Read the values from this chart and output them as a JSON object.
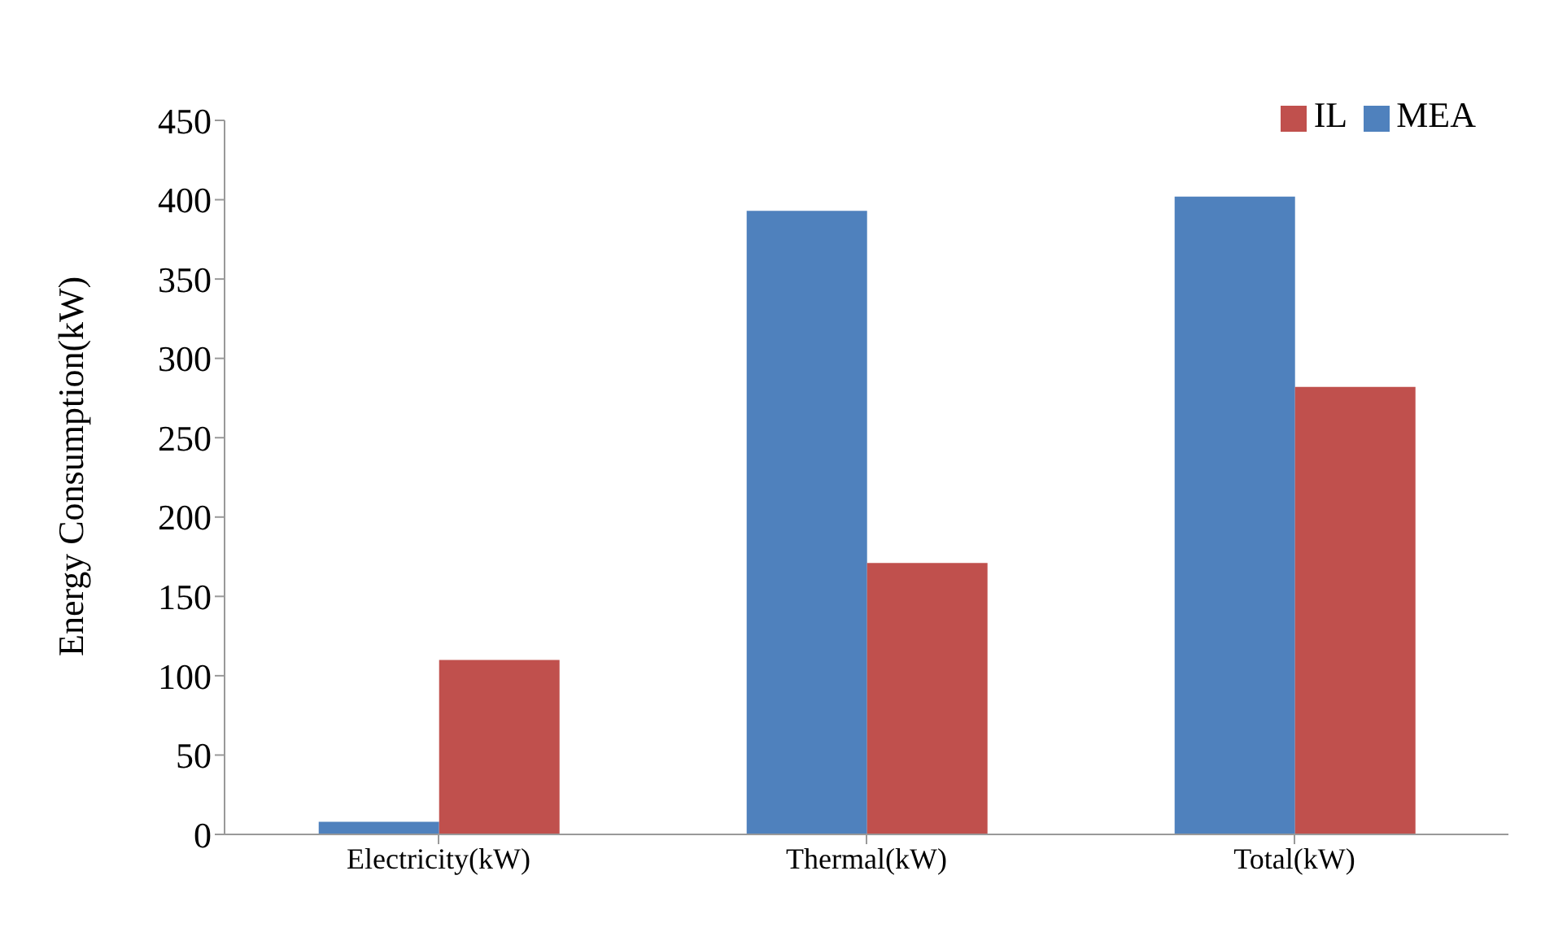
{
  "chart_data": {
    "type": "bar",
    "ylabel": "Energy Consumption(kW)",
    "categories": [
      "Electricity(kW)",
      "Thermal(kW)",
      "Total(kW)"
    ],
    "series": [
      {
        "name": "MEA",
        "color": "#4f81bd",
        "values": [
          8,
          393,
          402
        ]
      },
      {
        "name": "IL",
        "color": "#c0504d",
        "values": [
          110,
          171,
          282
        ]
      }
    ],
    "ylim": [
      0,
      450
    ],
    "yticks": [
      0,
      50,
      100,
      150,
      200,
      250,
      300,
      350,
      400,
      450
    ],
    "grid": false,
    "legend": "top right"
  }
}
